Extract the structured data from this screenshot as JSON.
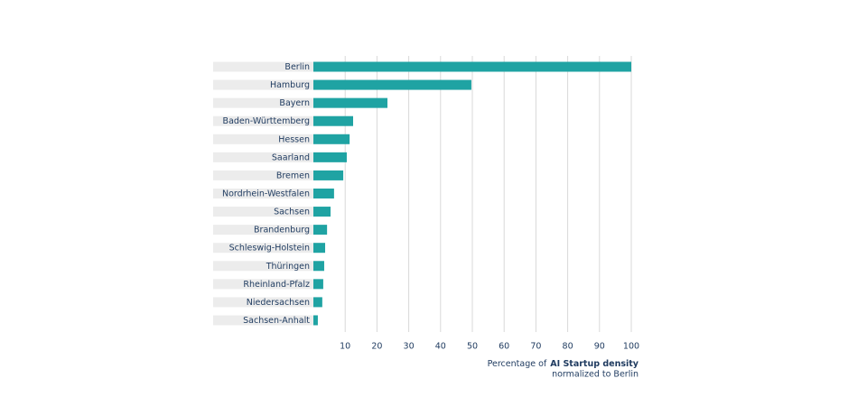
{
  "chart_data": {
    "type": "bar",
    "orientation": "horizontal",
    "categories": [
      "Berlin",
      "Hamburg",
      "Bayern",
      "Baden-Württemberg",
      "Hessen",
      "Saarland",
      "Bremen",
      "Nordrhein-Westfalen",
      "Sachsen",
      "Brandenburg",
      "Schleswig-Holstein",
      "Thüringen",
      "Rheinland-Pfalz",
      "Niedersachsen",
      "Sachsen-Anhalt"
    ],
    "values": [
      100,
      49.7,
      23.3,
      12.5,
      11.4,
      10.5,
      9.4,
      6.5,
      5.4,
      4.3,
      3.7,
      3.4,
      3.1,
      2.8,
      1.4
    ],
    "color": "#1fa3a3",
    "xlim": [
      0,
      100
    ],
    "xticks": [
      10,
      20,
      30,
      40,
      50,
      60,
      70,
      80,
      90,
      100
    ],
    "grid": true,
    "x_label_prefix": "Percentage of",
    "x_label_bold": "AI Startup density",
    "x_label_line2": "normalized to Berlin"
  }
}
